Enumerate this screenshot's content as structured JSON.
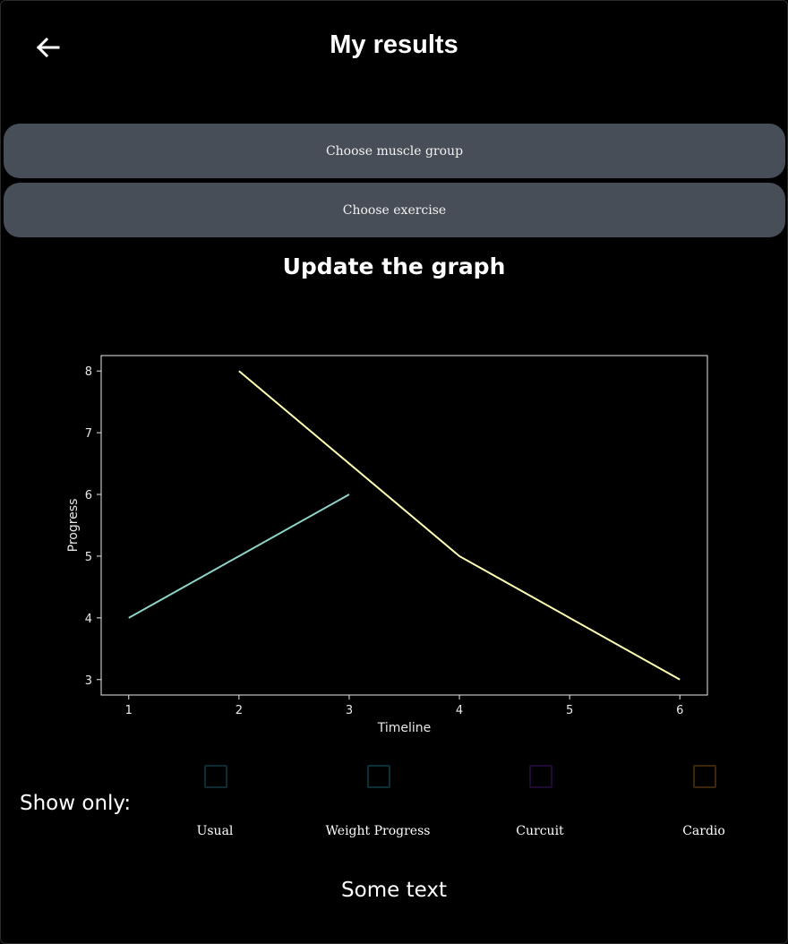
{
  "header": {
    "title": "My results",
    "back_icon": "arrow-left-icon"
  },
  "buttons": {
    "muscle_group": "Choose muscle group",
    "exercise": "Choose exercise",
    "update_graph": "Update the graph"
  },
  "chart_data": {
    "type": "line",
    "xlabel": "Timeline",
    "ylabel": "Progress",
    "xlim": [
      0.75,
      6.25
    ],
    "ylim": [
      2.75,
      8.25
    ],
    "xticks": [
      1,
      2,
      3,
      4,
      5,
      6
    ],
    "yticks": [
      3,
      4,
      5,
      6,
      7,
      8
    ],
    "grid": false,
    "background": "#000000",
    "series": [
      {
        "color": "#8dd3c7",
        "points": [
          [
            1,
            4
          ],
          [
            2,
            5
          ],
          [
            3,
            6
          ]
        ]
      },
      {
        "color": "#ffffb3",
        "points": [
          [
            2,
            8
          ],
          [
            4,
            5
          ],
          [
            6,
            3
          ]
        ]
      }
    ]
  },
  "filters": {
    "title": "Show only:",
    "items": [
      {
        "label": "Usual",
        "color": "#0e2a33"
      },
      {
        "label": "Weight Progress",
        "color": "#0c3036"
      },
      {
        "label": "Curcuit",
        "color": "#1e0b33"
      },
      {
        "label": "Cardio",
        "color": "#3d260a"
      }
    ]
  },
  "footer": {
    "text": "Some text"
  }
}
